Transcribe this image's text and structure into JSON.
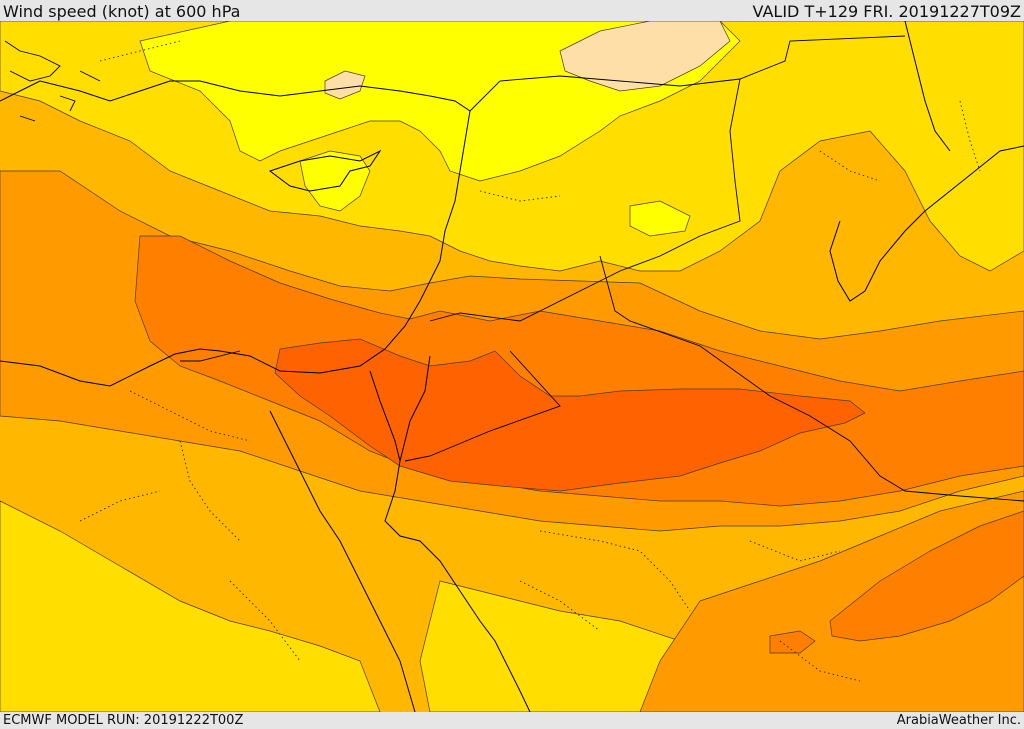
{
  "header": {
    "title": "Wind speed (knot) at 600 hPa",
    "valid": "VALID T+129 FRI. 20191227T09Z"
  },
  "footer": {
    "model_run": "ECMWF MODEL RUN: 20191222T00Z",
    "credit": "ArabiaWeather Inc."
  },
  "colors": {
    "band_lightest": "#ffdfa8",
    "band_yellow": "#ffff00",
    "band_gold": "#ffde00",
    "band_amber": "#ffb700",
    "band_orange": "#ff9a00",
    "band_dark_orange": "#ff7f00",
    "band_red_orange": "#ff6200",
    "coastline": "#000000",
    "contour": "#4d3a2e"
  }
}
